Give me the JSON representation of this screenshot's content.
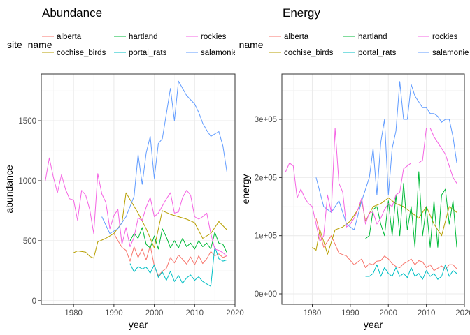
{
  "chart_data": [
    {
      "type": "line",
      "title": "Abundance",
      "xlabel": "year",
      "ylabel": "abundance",
      "legend_title": "site_name",
      "legend_placement": "top",
      "grid": true,
      "xlim": [
        1972,
        2020
      ],
      "ylim": [
        -30,
        1890
      ],
      "x_ticks": [
        1980,
        1990,
        2000,
        2010,
        2020
      ],
      "x_tick_labels": [
        "1980",
        "1990",
        "2000",
        "2010",
        "2020"
      ],
      "y_ticks": [
        0,
        500,
        1000,
        1500
      ],
      "y_tick_labels": [
        "0",
        "500",
        "1000",
        "1500"
      ],
      "legend_entries": [
        {
          "label": "alberta",
          "series": "alberta"
        },
        {
          "label": "cochise_birds",
          "series": "cochise_birds"
        },
        {
          "label": "hartland",
          "series": "hartland"
        },
        {
          "label": "portal_rats",
          "series": "portal_rats"
        },
        {
          "label": "rockies",
          "series": "rockies"
        },
        {
          "label": "salamonie",
          "series": "salamonie"
        }
      ],
      "series": [
        {
          "name": "alberta",
          "color": "#F8766D",
          "x": [
            1990,
            1991,
            1992,
            1993,
            1994,
            1995,
            1996,
            1997,
            1998,
            1999,
            2000,
            2001,
            2002,
            2003,
            2004,
            2005,
            2006,
            2007,
            2008,
            2009,
            2010,
            2011,
            2012,
            2013,
            2014,
            2015,
            2016,
            2017,
            2018
          ],
          "y": [
            560,
            500,
            445,
            420,
            330,
            450,
            360,
            430,
            340,
            460,
            290,
            210,
            245,
            270,
            360,
            315,
            380,
            345,
            305,
            365,
            300,
            375,
            310,
            350,
            410,
            375,
            390,
            360,
            375
          ]
        },
        {
          "name": "cochise_birds",
          "color": "#B79F00",
          "x": [
            1980,
            1981,
            1982,
            1983,
            1984,
            1985,
            1986,
            1988,
            1990,
            1992,
            1993,
            1996,
            1998,
            2000,
            2002,
            2004,
            2006,
            2008,
            2010,
            2012,
            2014,
            2016,
            2018
          ],
          "y": [
            400,
            415,
            410,
            405,
            370,
            355,
            490,
            520,
            560,
            650,
            900,
            730,
            600,
            440,
            750,
            720,
            700,
            680,
            650,
            520,
            560,
            660,
            590
          ]
        },
        {
          "name": "hartland",
          "color": "#00BA38",
          "x": [
            1994,
            1995,
            1996,
            1997,
            1998,
            1999,
            2000,
            2001,
            2002,
            2003,
            2004,
            2005,
            2006,
            2007,
            2008,
            2009,
            2010,
            2011,
            2012,
            2013,
            2014,
            2015,
            2016,
            2017,
            2018
          ],
          "y": [
            500,
            560,
            520,
            610,
            470,
            440,
            540,
            430,
            600,
            530,
            440,
            500,
            440,
            520,
            450,
            480,
            430,
            500,
            450,
            480,
            430,
            570,
            480,
            470,
            400
          ]
        },
        {
          "name": "portal_rats",
          "color": "#00BFC4",
          "x": [
            1994,
            1995,
            1996,
            1997,
            1998,
            1999,
            2000,
            2001,
            2002,
            2003,
            2004,
            2005,
            2006,
            2007,
            2008,
            2009,
            2010,
            2011,
            2012,
            2013,
            2014,
            2015,
            2016,
            2017,
            2018
          ],
          "y": [
            310,
            240,
            285,
            265,
            280,
            230,
            300,
            195,
            240,
            170,
            245,
            160,
            210,
            145,
            190,
            215,
            170,
            200,
            160,
            140,
            120,
            450,
            350,
            330,
            340
          ]
        },
        {
          "name": "salamonie",
          "color": "#619CFF",
          "x": [
            1987,
            1989,
            1991,
            1993,
            1995,
            1996,
            1997,
            1998,
            1999,
            2000,
            2001,
            2002,
            2004,
            2005,
            2006,
            2008,
            2010,
            2011,
            2012,
            2013,
            2014,
            2015,
            2016,
            2017,
            2018
          ],
          "y": [
            700,
            560,
            600,
            700,
            870,
            1220,
            970,
            1230,
            1370,
            1020,
            1310,
            1350,
            1770,
            1500,
            1830,
            1710,
            1640,
            1570,
            1480,
            1420,
            1370,
            1390,
            1410,
            1290,
            1070
          ]
        },
        {
          "name": "rockies",
          "color": "#F564E3",
          "x": [
            1973,
            1974,
            1975,
            1976,
            1977,
            1978,
            1979,
            1980,
            1981,
            1982,
            1983,
            1984,
            1985,
            1986,
            1987,
            1988,
            1989,
            1990,
            1991,
            1992,
            1993,
            1994,
            1995,
            1996,
            1997,
            1998,
            1999,
            2000,
            2001,
            2002,
            2003,
            2004,
            2005,
            2006,
            2007,
            2008,
            2009,
            2010,
            2011,
            2012,
            2013,
            2014,
            2015,
            2016,
            2017,
            2018
          ],
          "y": [
            1000,
            1190,
            1030,
            900,
            1050,
            930,
            850,
            840,
            670,
            920,
            880,
            760,
            560,
            1060,
            890,
            820,
            600,
            710,
            760,
            470,
            610,
            450,
            530,
            690,
            670,
            780,
            860,
            700,
            730,
            790,
            850,
            900,
            730,
            740,
            860,
            920,
            880,
            700,
            680,
            700,
            730,
            560,
            430,
            420,
            400,
            370
          ]
        }
      ]
    },
    {
      "type": "line",
      "title": "Energy",
      "xlabel": "year",
      "ylabel": "energy",
      "legend_title": "site_name",
      "legend_placement": "top",
      "grid": true,
      "xlim": [
        1972,
        2020
      ],
      "ylim": [
        -18000,
        378000
      ],
      "x_ticks": [
        1980,
        1990,
        2000,
        2010,
        2020
      ],
      "x_tick_labels": [
        "1980",
        "1990",
        "2000",
        "2010",
        "2020"
      ],
      "y_ticks": [
        0,
        100000,
        200000,
        300000
      ],
      "y_tick_labels": [
        "0e+00",
        "1e+05",
        "2e+05",
        "3e+05"
      ],
      "legend_entries": [
        {
          "label": "alberta",
          "series": "alberta"
        },
        {
          "label": "cochise_birds",
          "series": "cochise_birds"
        },
        {
          "label": "hartland",
          "series": "hartland"
        },
        {
          "label": "portal_rats",
          "series": "portal_rats"
        },
        {
          "label": "rockies",
          "series": "rockies"
        },
        {
          "label": "salamonie",
          "series": "salamonie"
        }
      ],
      "series": [
        {
          "name": "alberta",
          "color": "#F8766D",
          "x": [
            1981,
            1983,
            1985,
            1987,
            1989,
            1991,
            1992,
            1993,
            1994,
            1995,
            1996,
            1997,
            1998,
            1999,
            2000,
            2001,
            2002,
            2003,
            2004,
            2005,
            2006,
            2007,
            2008,
            2009,
            2010,
            2011,
            2012,
            2013,
            2014,
            2015,
            2016,
            2017,
            2018
          ],
          "y": [
            130000,
            80000,
            100000,
            70000,
            65000,
            50000,
            55000,
            60000,
            45000,
            52000,
            50000,
            56000,
            57000,
            65000,
            60000,
            52000,
            47000,
            45000,
            52000,
            55000,
            60000,
            50000,
            57000,
            55000,
            45000,
            50000,
            40000,
            44000,
            48000,
            42000,
            50000,
            50000,
            43000
          ]
        },
        {
          "name": "cochise_birds",
          "color": "#B79F00",
          "x": [
            1980,
            1981,
            1982,
            1983,
            1984,
            1986,
            1988,
            1990,
            1992,
            1993,
            1994,
            1996,
            1998,
            2000,
            2002,
            2004,
            2006,
            2008,
            2010,
            2012,
            2014,
            2016,
            2018
          ],
          "y": [
            80000,
            75000,
            110000,
            90000,
            68000,
            110000,
            115000,
            125000,
            145000,
            160000,
            125000,
            150000,
            155000,
            165000,
            155000,
            150000,
            140000,
            130000,
            150000,
            120000,
            100000,
            150000,
            140000
          ]
        },
        {
          "name": "hartland",
          "color": "#00BA38",
          "x": [
            1994,
            1995,
            1996,
            1997,
            1998,
            1999,
            2000,
            2001,
            2002,
            2003,
            2004,
            2005,
            2006,
            2007,
            2008,
            2009,
            2010,
            2011,
            2012,
            2013,
            2014,
            2015,
            2016,
            2017,
            2018
          ],
          "y": [
            95000,
            100000,
            145000,
            150000,
            120000,
            100000,
            160000,
            100000,
            170000,
            100000,
            190000,
            110000,
            150000,
            80000,
            210000,
            100000,
            150000,
            80000,
            160000,
            80000,
            170000,
            180000,
            120000,
            160000,
            80000
          ]
        },
        {
          "name": "portal_rats",
          "color": "#00BFC4",
          "x": [
            1994,
            1995,
            1996,
            1997,
            1998,
            1999,
            2000,
            2001,
            2002,
            2003,
            2004,
            2005,
            2006,
            2007,
            2008,
            2009,
            2010,
            2011,
            2012,
            2013,
            2014,
            2015,
            2016,
            2017,
            2018
          ],
          "y": [
            30000,
            30000,
            35000,
            50000,
            30000,
            45000,
            35000,
            30000,
            45000,
            30000,
            35000,
            28000,
            45000,
            30000,
            35000,
            25000,
            40000,
            30000,
            35000,
            25000,
            30000,
            50000,
            30000,
            40000,
            35000
          ]
        },
        {
          "name": "salamonie",
          "color": "#619CFF",
          "x": [
            1981,
            1983,
            1985,
            1987,
            1989,
            1991,
            1993,
            1995,
            1996,
            1997,
            1998,
            1999,
            2000,
            2001,
            2002,
            2003,
            2004,
            2005,
            2006,
            2007,
            2008,
            2009,
            2010,
            2011,
            2012,
            2013,
            2014,
            2015,
            2016,
            2017,
            2018
          ],
          "y": [
            200000,
            150000,
            140000,
            160000,
            120000,
            110000,
            160000,
            200000,
            250000,
            170000,
            260000,
            300000,
            170000,
            250000,
            280000,
            365000,
            300000,
            300000,
            360000,
            340000,
            330000,
            320000,
            320000,
            310000,
            310000,
            305000,
            295000,
            300000,
            300000,
            270000,
            225000
          ]
        },
        {
          "name": "rockies",
          "color": "#F564E3",
          "x": [
            1973,
            1974,
            1975,
            1976,
            1977,
            1978,
            1979,
            1980,
            1981,
            1982,
            1983,
            1984,
            1985,
            1986,
            1987,
            1988,
            1989,
            1990,
            1991,
            1992,
            1993,
            1994,
            1995,
            1996,
            1997,
            1998,
            1999,
            2000,
            2001,
            2002,
            2003,
            2004,
            2005,
            2006,
            2007,
            2008,
            2009,
            2010,
            2011,
            2012,
            2013,
            2014,
            2015,
            2016,
            2017,
            2018
          ],
          "y": [
            210000,
            225000,
            220000,
            165000,
            180000,
            165000,
            155000,
            150000,
            120000,
            90000,
            100000,
            170000,
            140000,
            285000,
            190000,
            175000,
            115000,
            120000,
            130000,
            145000,
            165000,
            120000,
            140000,
            140000,
            120000,
            130000,
            145000,
            155000,
            150000,
            170000,
            175000,
            215000,
            220000,
            225000,
            225000,
            225000,
            230000,
            285000,
            285000,
            270000,
            260000,
            250000,
            240000,
            220000,
            200000,
            190000
          ]
        }
      ]
    }
  ]
}
